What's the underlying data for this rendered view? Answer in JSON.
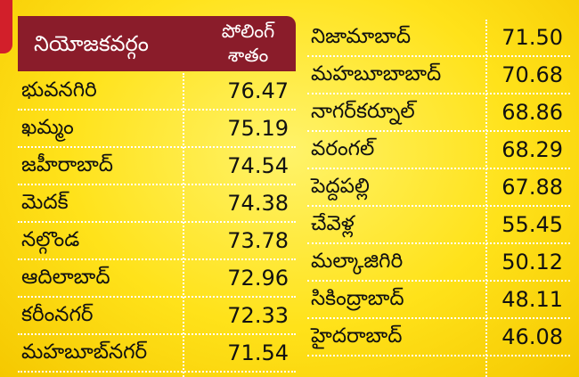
{
  "header": {
    "name": "నియోజకవర్గం",
    "value_line1": "పోలింగ్",
    "value_line2": "శాతం"
  },
  "left": [
    [
      "భువనగిరి",
      "76.47"
    ],
    [
      "ఖమ్మం",
      "75.19"
    ],
    [
      "జహీరాబాద్",
      "74.54"
    ],
    [
      "మెదక్",
      "74.38"
    ],
    [
      "నల్గొండ",
      "73.78"
    ],
    [
      "ఆదిలాబాద్",
      "72.96"
    ],
    [
      "కరీంనగర్",
      "72.33"
    ],
    [
      "మహబూబ్‌నగర్",
      "71.54"
    ]
  ],
  "right": [
    [
      "నిజామాబాద్",
      "71.50"
    ],
    [
      "మహబూబాబాద్",
      "70.68"
    ],
    [
      "నాగర్‌కర్నూల్",
      "68.86"
    ],
    [
      "వరంగల్",
      "68.29"
    ],
    [
      "పెద్దపల్లి",
      "67.88"
    ],
    [
      "చేవెళ్ల",
      "55.45"
    ],
    [
      "మల్కాజిగిరి",
      "50.12"
    ],
    [
      "సికింద్రాబాద్",
      "48.11"
    ],
    [
      "హైదరాబాద్",
      "46.08"
    ]
  ]
}
